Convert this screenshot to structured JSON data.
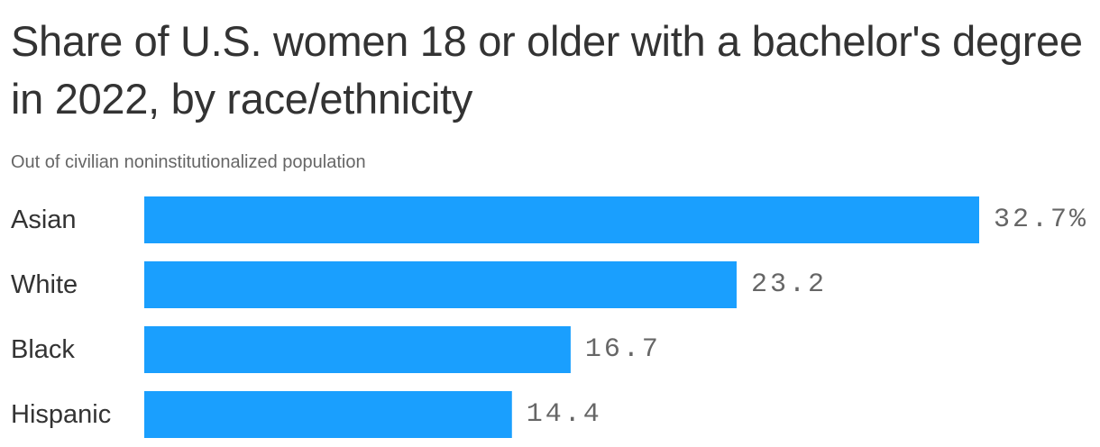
{
  "chart_data": {
    "type": "bar",
    "orientation": "horizontal",
    "title": "Share of U.S. women 18 or older with a bachelor's degree in 2022, by race/ethnicity",
    "subtitle": "Out of civilian noninstitutionalized population",
    "categories": [
      "Asian",
      "White",
      "Black",
      "Hispanic"
    ],
    "values": [
      32.7,
      23.2,
      16.7,
      14.4
    ],
    "value_labels": [
      "32.7%",
      "23.2",
      "16.7",
      "14.4"
    ],
    "xlim": [
      0,
      32.7
    ],
    "grid": false,
    "legend": "none",
    "bar_color": "#1a9ffe"
  }
}
